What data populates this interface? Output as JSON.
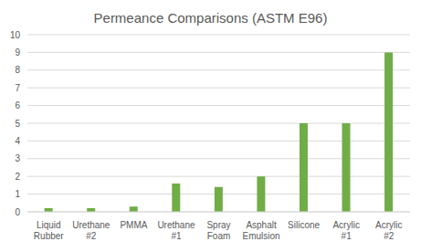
{
  "chart_data": {
    "type": "bar",
    "title": "Permeance Comparisons (ASTM E96)",
    "categories": [
      "Liquid Rubber",
      "Urethane #2",
      "PMMA",
      "Urethane #1",
      "Spray Foam",
      "Asphalt Emulsion",
      "Silicone",
      "Acrylic #1",
      "Acrylic #2"
    ],
    "values": [
      0.2,
      0.2,
      0.3,
      1.6,
      1.4,
      2,
      5,
      5,
      9
    ],
    "color": "#70ad47",
    "ylim": [
      0,
      10
    ],
    "yticks": [
      0,
      1,
      2,
      3,
      4,
      5,
      6,
      7,
      8,
      9,
      10
    ],
    "grid": true
  }
}
